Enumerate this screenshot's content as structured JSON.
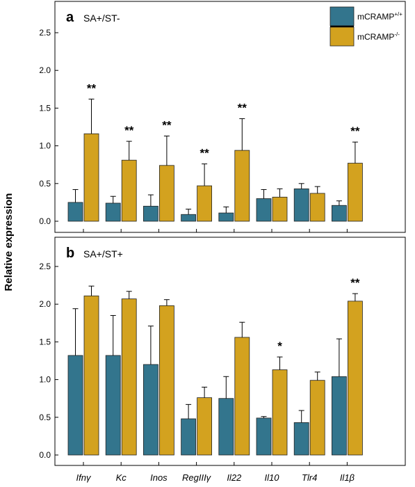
{
  "y_axis_label": "Relative expression",
  "legend": {
    "items": [
      {
        "base": "mCRAMP",
        "sup": "+/+",
        "color": "#33758d"
      },
      {
        "base": "mCRAMP",
        "sup": "-/-",
        "color": "#d3a21f"
      }
    ]
  },
  "chart_data": [
    {
      "type": "bar",
      "panel_letter": "a",
      "title": "SA+/ST-",
      "categories": [
        "Ifnγ",
        "Kc",
        "Inos",
        "RegIIIγ",
        "Il22",
        "Il10",
        "Tlr4",
        "Il1β"
      ],
      "ylim": [
        0,
        2.8
      ],
      "yticks": [
        "0.0",
        "0.5",
        "1.0",
        "1.5",
        "2.0",
        "2.5"
      ],
      "grid": false,
      "legend_position": "top-right",
      "series": [
        {
          "name": "mCRAMP+/+",
          "color": "#33758d",
          "values": [
            0.25,
            0.24,
            0.2,
            0.09,
            0.11,
            0.3,
            0.43,
            0.21
          ],
          "errors": [
            0.17,
            0.09,
            0.15,
            0.07,
            0.08,
            0.12,
            0.07,
            0.06
          ]
        },
        {
          "name": "mCRAMP-/-",
          "color": "#d3a21f",
          "values": [
            1.16,
            0.81,
            0.74,
            0.47,
            0.94,
            0.32,
            0.37,
            0.77
          ],
          "errors": [
            0.46,
            0.25,
            0.39,
            0.29,
            0.42,
            0.11,
            0.09,
            0.28
          ]
        }
      ],
      "annotations": [
        "**",
        "**",
        "**",
        "**",
        "**",
        "",
        "",
        "**"
      ]
    },
    {
      "type": "bar",
      "panel_letter": "b",
      "title": "SA+/ST+",
      "categories": [
        "Ifnγ",
        "Kc",
        "Inos",
        "RegIIIγ",
        "Il22",
        "Il10",
        "Tlr4",
        "Il1β"
      ],
      "ylim": [
        0,
        2.8
      ],
      "yticks": [
        "0.0",
        "0.5",
        "1.0",
        "1.5",
        "2.0",
        "2.5"
      ],
      "grid": false,
      "series": [
        {
          "name": "mCRAMP+/+",
          "color": "#33758d",
          "values": [
            1.32,
            1.32,
            1.2,
            0.48,
            0.75,
            0.49,
            0.43,
            1.04
          ],
          "errors": [
            0.62,
            0.53,
            0.51,
            0.19,
            0.29,
            0.02,
            0.16,
            0.5
          ]
        },
        {
          "name": "mCRAMP-/-",
          "color": "#d3a21f",
          "values": [
            2.11,
            2.07,
            1.98,
            0.76,
            1.56,
            1.13,
            0.99,
            2.04
          ],
          "errors": [
            0.13,
            0.1,
            0.08,
            0.14,
            0.2,
            0.17,
            0.11,
            0.1
          ]
        }
      ],
      "annotations": [
        "",
        "",
        "",
        "",
        "",
        "*",
        "",
        "**"
      ]
    }
  ]
}
